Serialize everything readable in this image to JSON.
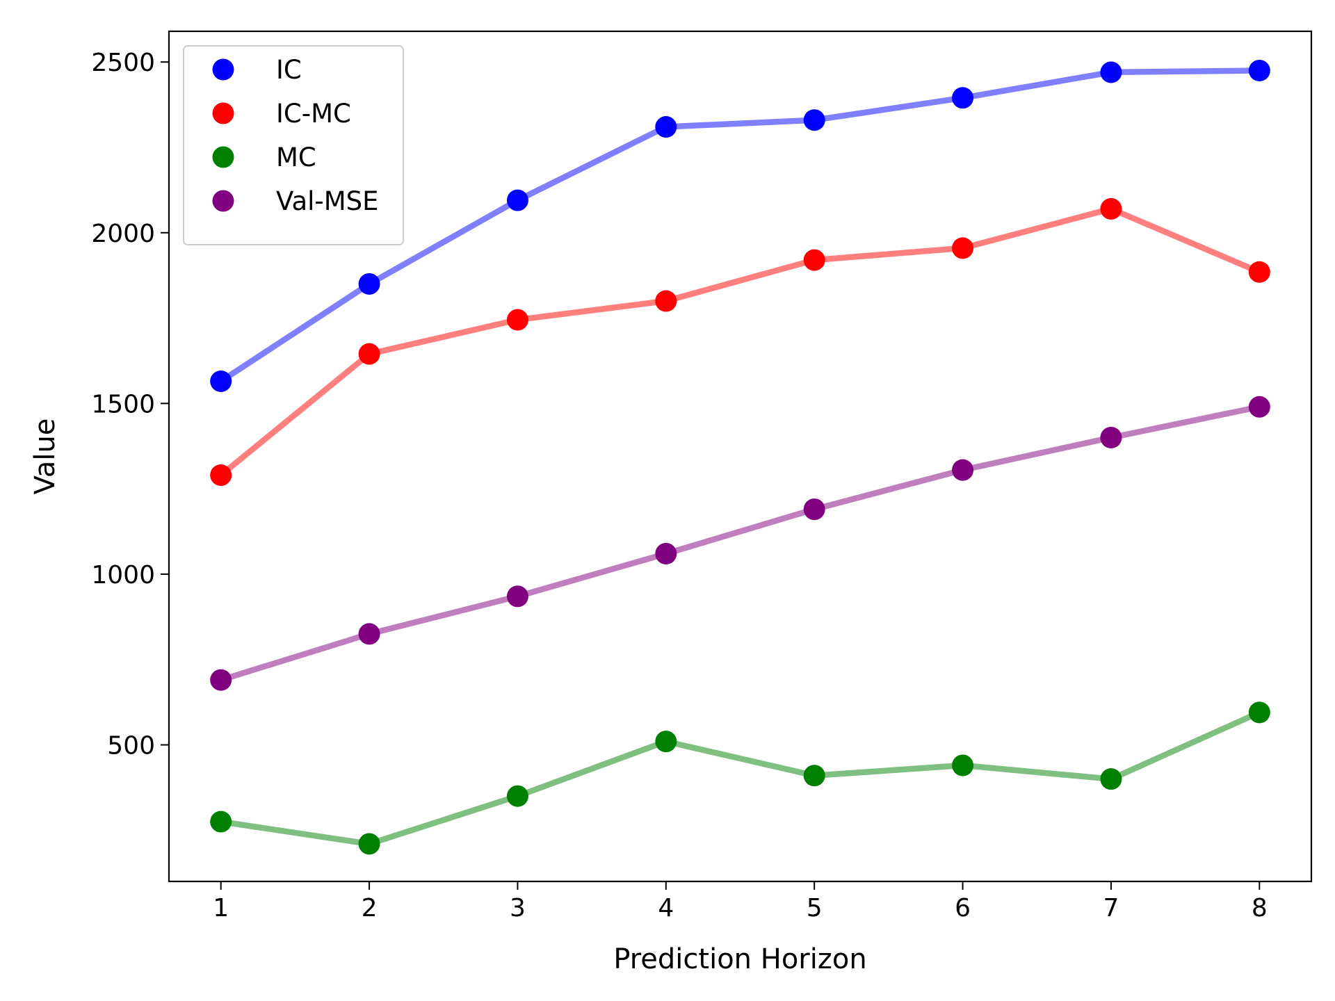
{
  "chart_data": {
    "type": "line",
    "title": "",
    "xlabel": "Prediction Horizon",
    "ylabel": "Value",
    "x": [
      1,
      2,
      3,
      4,
      5,
      6,
      7,
      8
    ],
    "xticks": [
      "1",
      "2",
      "3",
      "4",
      "5",
      "6",
      "7",
      "8"
    ],
    "yticks": [
      "500",
      "1000",
      "1500",
      "2000",
      "2500"
    ],
    "xlim": [
      0.65,
      8.35
    ],
    "ylim": [
      100,
      2590
    ],
    "grid": false,
    "legend_position": "upper-left",
    "series": [
      {
        "name": "IC",
        "color": "#0000ff",
        "values": [
          1565,
          1850,
          2095,
          2310,
          2330,
          2395,
          2470,
          2475
        ]
      },
      {
        "name": "IC-MC",
        "color": "#ff0000",
        "values": [
          1290,
          1645,
          1745,
          1800,
          1920,
          1955,
          2070,
          1885
        ]
      },
      {
        "name": "MC",
        "color": "#008000",
        "values": [
          275,
          210,
          350,
          510,
          410,
          440,
          400,
          595
        ]
      },
      {
        "name": "Val-MSE",
        "color": "#800080",
        "values": [
          690,
          825,
          935,
          1060,
          1190,
          1305,
          1400,
          1490
        ]
      }
    ]
  }
}
